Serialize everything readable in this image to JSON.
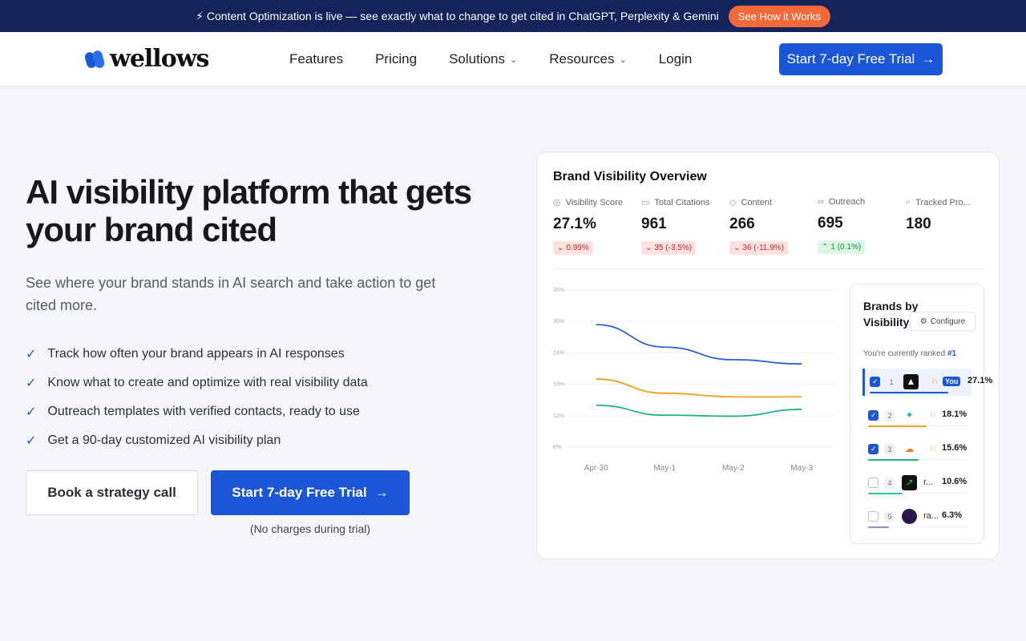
{
  "banner": {
    "text": "⚡ Content Optimization is live — see exactly what to change to get cited in ChatGPT, Perplexity & Gemini",
    "button": "See How it Works"
  },
  "nav": {
    "logo": "wellows",
    "links": [
      "Features",
      "Pricing",
      "Solutions",
      "Resources",
      "Login"
    ],
    "cta": "Start 7-day Free Trial"
  },
  "hero": {
    "title": "AI visibility platform that gets your brand cited",
    "subtitle": "See where your brand stands in AI search and take action to get cited more.",
    "bullets": [
      "Track how often your brand appears in AI responses",
      "Know what to create and optimize with real visibility data",
      "Outreach templates with verified contacts, ready to use",
      "Get a 90-day customized AI visibility plan"
    ],
    "secondary_button": "Book a strategy call",
    "primary_button": "Start 7-day Free Trial",
    "note": "(No charges during trial)"
  },
  "dashboard": {
    "title": "Brand Visibility Overview",
    "stats": [
      {
        "label": "Visibility Score",
        "value": "27.1%",
        "change": "0.99%",
        "trend": "down"
      },
      {
        "label": "Total Citations",
        "value": "961",
        "change": "35 (-3.5%)",
        "trend": "down"
      },
      {
        "label": "Content",
        "value": "266",
        "change": "36 (-11.9%)",
        "trend": "down"
      },
      {
        "label": "Outreach",
        "value": "695",
        "change": "1 (0.1%)",
        "trend": "up"
      },
      {
        "label": "Tracked Pro...",
        "value": "180"
      }
    ],
    "brands": {
      "title": "Brands by Visibility",
      "configure": "Configure",
      "ranked_label": "You're currently ranked",
      "ranked_value": "#1",
      "you_badge": "You",
      "rows": [
        {
          "rank": "1",
          "value": "27.1%",
          "checked": true,
          "you": true
        },
        {
          "rank": "2",
          "value": "18.1%",
          "checked": true
        },
        {
          "rank": "3",
          "value": "15.6%",
          "checked": true
        },
        {
          "rank": "4",
          "name": "r...",
          "value": "10.6%",
          "checked": false
        },
        {
          "rank": "5",
          "name": "ra...",
          "value": "6.3%",
          "checked": false
        }
      ]
    }
  },
  "chart_data": {
    "type": "line",
    "categories": [
      "Apr-30",
      "May-1",
      "May-2",
      "May-3"
    ],
    "series": [
      {
        "color": "#2f5fd6",
        "values": [
          29.4,
          25.1,
          22.7,
          21.9
        ]
      },
      {
        "color": "#f0a020",
        "values": [
          19.0,
          16.3,
          15.6,
          15.6
        ]
      },
      {
        "color": "#1fb57a",
        "values": [
          14.0,
          12.1,
          11.9,
          13.2
        ]
      }
    ],
    "ylim": [
      6,
      36
    ],
    "yticks": [
      {
        "value": 6,
        "label": "6%"
      },
      {
        "value": 12,
        "label": "12%"
      },
      {
        "value": 18,
        "label": "18%"
      },
      {
        "value": 24,
        "label": "24%"
      },
      {
        "value": 30,
        "label": "30%"
      },
      {
        "value": 36,
        "label": "36%"
      }
    ],
    "grid": true
  }
}
